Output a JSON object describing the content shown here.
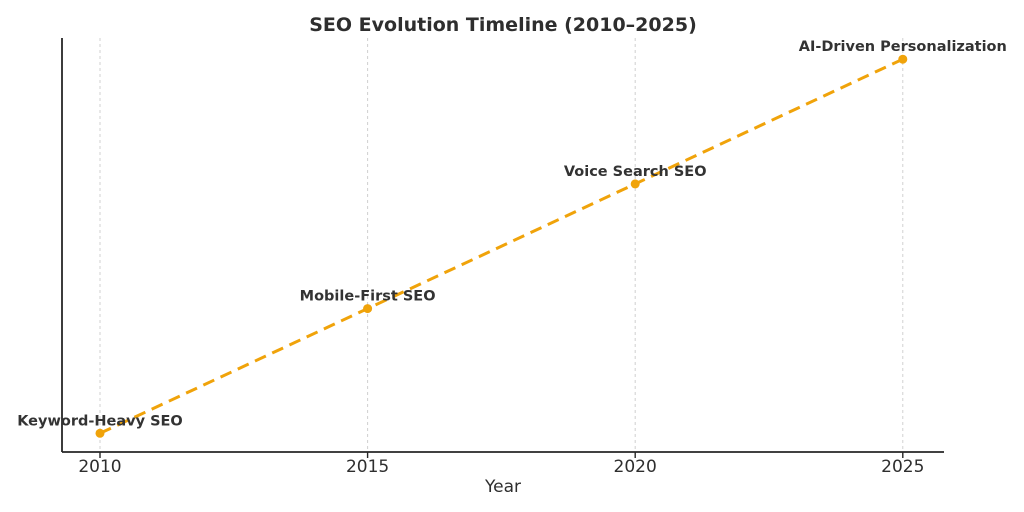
{
  "figure": {
    "background": "#ffffff"
  },
  "chart_data": {
    "type": "line",
    "title": "SEO Evolution Timeline (2010–2025)",
    "xlabel": "Year",
    "ylabel": "",
    "line_style": "dashed",
    "line_color": "#F0A30A",
    "marker": "circle",
    "marker_color": "#F0A30A",
    "text_color": "#2e2e2e",
    "grid": "vertical-dashed-at-xticks",
    "grid_color": "#d0d0d0",
    "legend": "none",
    "x": [
      2010,
      2015,
      2020,
      2025
    ],
    "values": [
      1,
      2,
      3,
      4
    ],
    "point_labels": [
      "Keyword-Heavy SEO",
      "Mobile-First SEO",
      "Voice Search SEO",
      "AI-Driven Personalization"
    ],
    "xticks": [
      2010,
      2015,
      2020,
      2025
    ],
    "xtick_labels": [
      "2010",
      "2015",
      "2020",
      "2025"
    ],
    "xlim": [
      2009.29,
      2025.77
    ],
    "ylim": [
      0.85,
      4.17
    ]
  }
}
